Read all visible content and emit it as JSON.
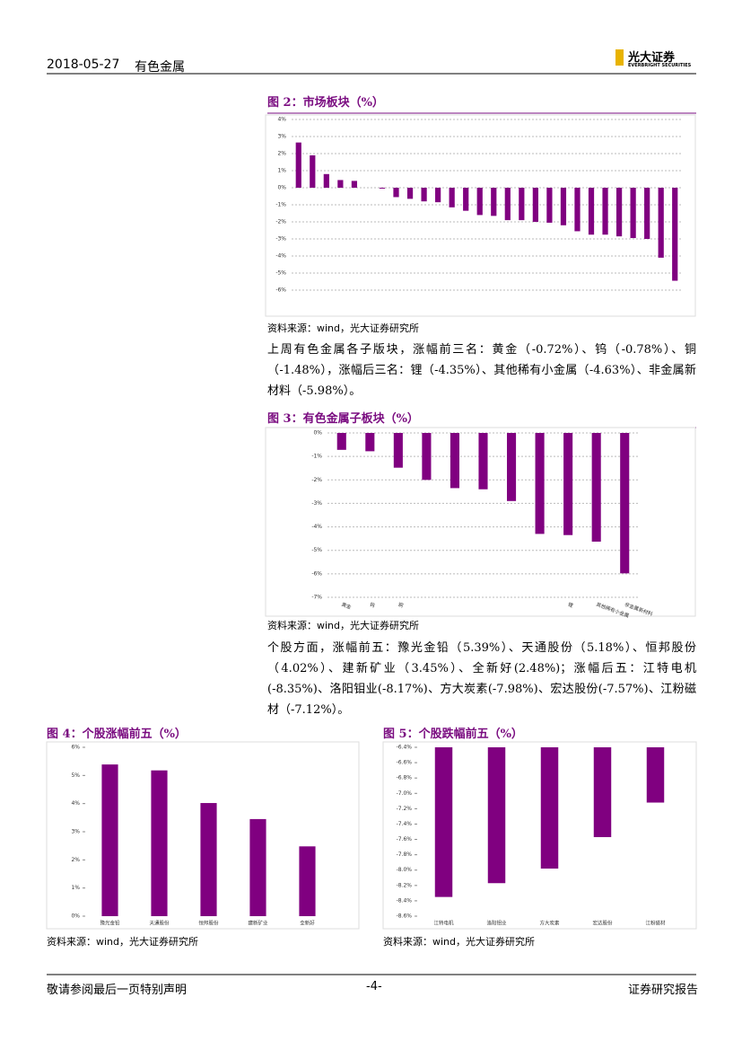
{
  "header": {
    "date": "2018-05-27",
    "sector": "有色金属",
    "logo_cn": "光大证券",
    "logo_en": "EVERBRIGHT SECURITIES"
  },
  "paragraphs": [
    "上周有色金属各子版块，涨幅前三名：黄金（-0.72%）、钨（-0.78%）、铜（-1.48%），涨幅后三名：锂（-4.35%）、其他稀有小金属（-4.63%）、非金属新材料（-5.98%）。",
    "个股方面，涨幅前五：豫光金铅（5.39%）、天通股份（5.18%）、恒邦股份（4.02%）、建新矿业（3.45%）、全新好(2.48%)；涨幅后五：江特电机(-8.35%)、洛阳钼业(-8.17%)、方大炭素(-7.98%)、宏达股份(-7.57%)、江粉磁材（-7.12%）。"
  ],
  "chart_data": [
    {
      "type": "bar",
      "title": "图 2：市场板块（%）",
      "source": "资料来源：wind，光大证券研究所",
      "color": "#800080",
      "grid": true,
      "categories": [
        null,
        null,
        null,
        null,
        null,
        null,
        null,
        null,
        null,
        null,
        null,
        null,
        null,
        null,
        null,
        null,
        null,
        null,
        null,
        null,
        null,
        null,
        null,
        null,
        null,
        null,
        null,
        null
      ],
      "values": [
        2.65,
        1.9,
        0.8,
        0.45,
        0.4,
        0,
        -0.05,
        -0.55,
        -0.65,
        -0.8,
        -0.85,
        -1.15,
        -1.35,
        -1.6,
        -1.65,
        -1.9,
        -1.9,
        -2.0,
        -2.05,
        -2.2,
        -2.55,
        -2.75,
        -2.75,
        -2.85,
        -2.95,
        -3.0,
        -4.1,
        -5.45
      ],
      "ylim": [
        -6,
        4
      ],
      "yticks": [
        {
          "value": 4,
          "label": "4%"
        },
        {
          "value": 3,
          "label": "3%"
        },
        {
          "value": 2,
          "label": "2%"
        },
        {
          "value": 1,
          "label": "1%"
        },
        {
          "value": 0,
          "label": "0%"
        },
        {
          "value": -1,
          "label": "-1%"
        },
        {
          "value": -2,
          "label": "-2%"
        },
        {
          "value": -3,
          "label": "-3%"
        },
        {
          "value": -4,
          "label": "-4%"
        },
        {
          "value": -5,
          "label": "-5%"
        },
        {
          "value": -6,
          "label": "-6%"
        }
      ]
    },
    {
      "type": "bar",
      "title": "图 3：有色金属子板块（%）",
      "source": "资料来源：wind，光大证券研究所",
      "color": "#800080",
      "grid": true,
      "categories": [
        "黄金",
        "钨",
        "铜",
        null,
        null,
        null,
        null,
        null,
        "锂",
        "其他稀有小金属",
        "非金属新材料"
      ],
      "values": [
        -0.72,
        -0.78,
        -1.48,
        -2.0,
        -2.35,
        -2.4,
        -2.9,
        -4.3,
        -4.35,
        -4.63,
        -5.98
      ],
      "ylim": [
        -7,
        0
      ],
      "yticks": [
        {
          "value": 0,
          "label": "0%"
        },
        {
          "value": -1,
          "label": "-1%"
        },
        {
          "value": -2,
          "label": "-2%"
        },
        {
          "value": -3,
          "label": "-3%"
        },
        {
          "value": -4,
          "label": "-4%"
        },
        {
          "value": -5,
          "label": "-5%"
        },
        {
          "value": -6,
          "label": "-6%"
        },
        {
          "value": -7,
          "label": "-7%"
        }
      ]
    },
    {
      "type": "bar",
      "title": "图 4：个股涨幅前五（%）",
      "source": "资料来源：wind，光大证券研究所",
      "color": "#800080",
      "grid": false,
      "categories": [
        "豫光金铅",
        "天通股份",
        "恒邦股份",
        "建新矿业",
        "全新好"
      ],
      "values": [
        5.39,
        5.18,
        4.02,
        3.45,
        2.48
      ],
      "ylim": [
        0,
        6
      ],
      "yticks": [
        {
          "value": 6,
          "label": "6%"
        },
        {
          "value": 5,
          "label": "5%"
        },
        {
          "value": 4,
          "label": "4%"
        },
        {
          "value": 3,
          "label": "3%"
        },
        {
          "value": 2,
          "label": "2%"
        },
        {
          "value": 1,
          "label": "1%"
        },
        {
          "value": 0,
          "label": "0%"
        }
      ]
    },
    {
      "type": "bar",
      "title": "图 5：个股跌幅前五（%）",
      "source": "资料来源：wind，光大证券研究所",
      "color": "#800080",
      "grid": false,
      "categories": [
        "江特电机",
        "洛阳钼业",
        "方大炭素",
        "宏达股份",
        "江粉磁材"
      ],
      "values": [
        -8.35,
        -8.17,
        -7.98,
        -7.57,
        -7.12
      ],
      "ylim": [
        -8.6,
        -6.4
      ],
      "yticks": [
        {
          "value": -6.4,
          "label": "-6.4%"
        },
        {
          "value": -6.6,
          "label": "-6.6%"
        },
        {
          "value": -6.8,
          "label": "-6.8%"
        },
        {
          "value": -7,
          "label": "-7.0%"
        },
        {
          "value": -7.2,
          "label": "-7.2%"
        },
        {
          "value": -7.4,
          "label": "-7.4%"
        },
        {
          "value": -7.6,
          "label": "-7.6%"
        },
        {
          "value": -7.8,
          "label": "-7.8%"
        },
        {
          "value": -8,
          "label": "-8.0%"
        },
        {
          "value": -8.2,
          "label": "-8.2%"
        },
        {
          "value": -8.4,
          "label": "-8.4%"
        },
        {
          "value": -8.6,
          "label": "-8.6%"
        }
      ]
    }
  ],
  "footer": {
    "left": "敬请参阅最后一页特别声明",
    "center": "-4-",
    "right": "证券研究报告"
  }
}
